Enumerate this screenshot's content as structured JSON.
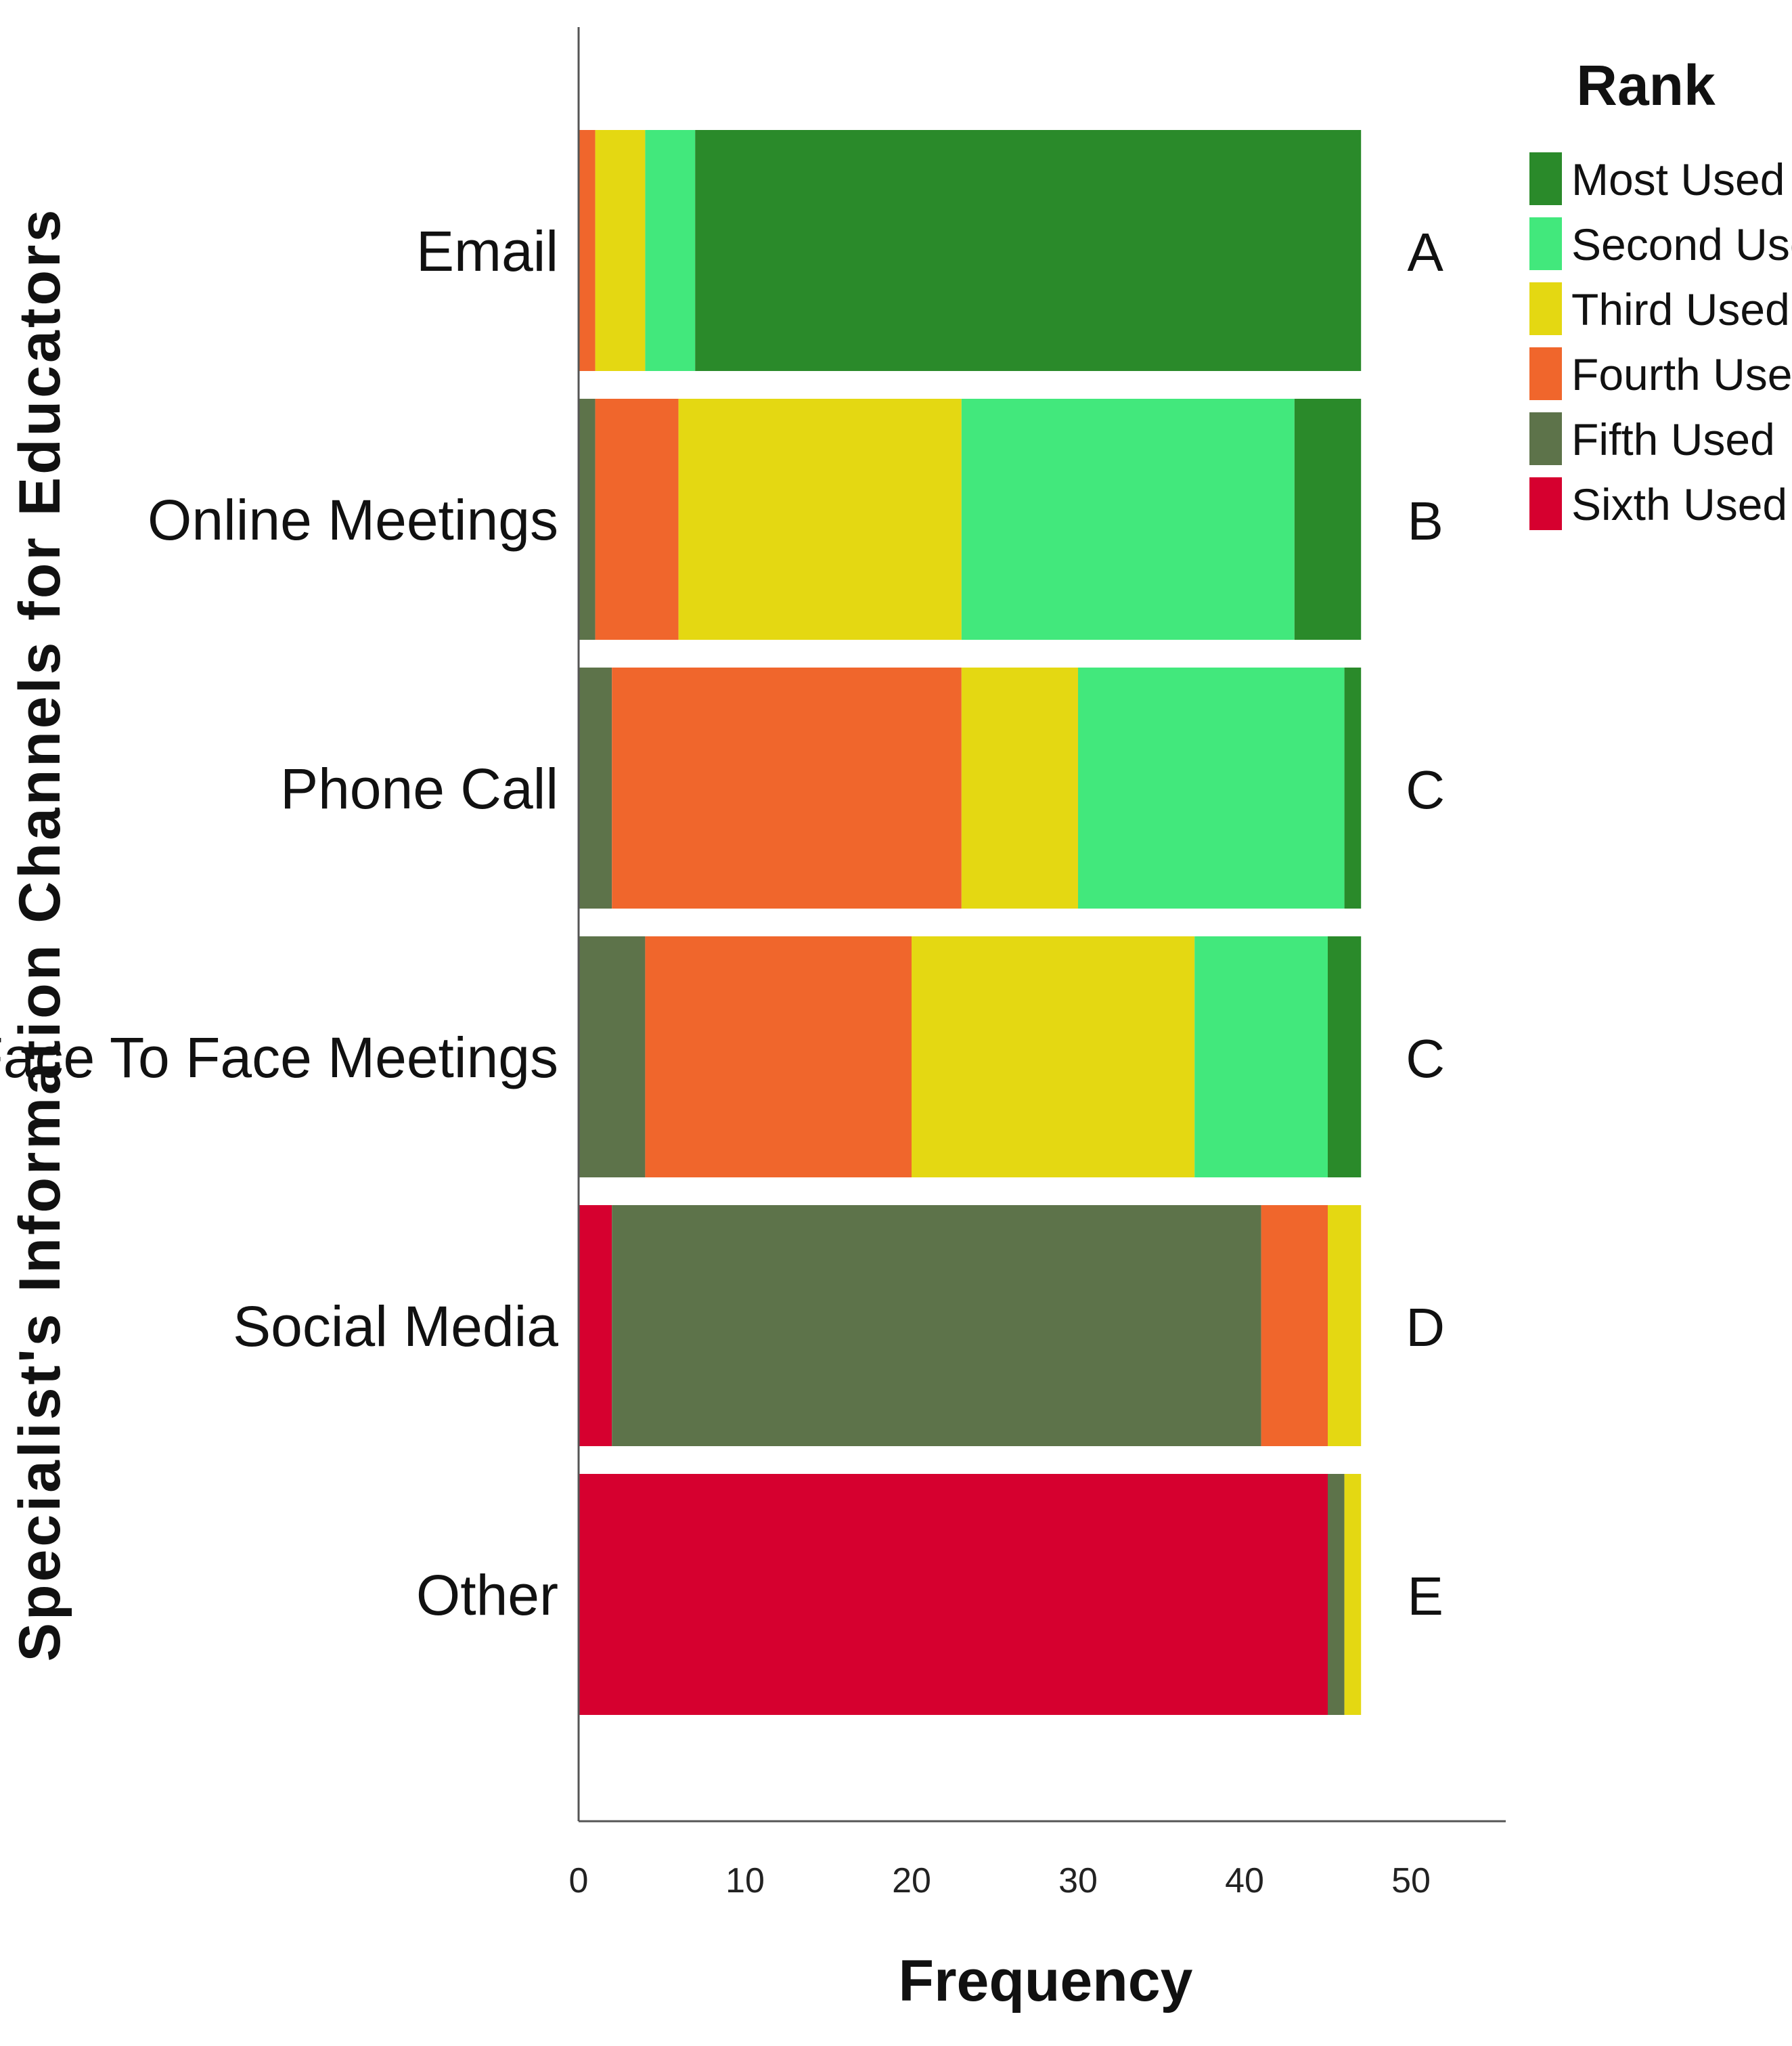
{
  "chart_data": {
    "type": "bar",
    "orientation": "horizontal",
    "stacked": true,
    "title": "",
    "xlabel": "Frequency",
    "ylabel": "Specialist's Information Channels for Educators",
    "xlim": [
      0,
      55
    ],
    "xticks": [
      0,
      10,
      20,
      30,
      40,
      50
    ],
    "grid": false,
    "legend_title": "Rank",
    "legend_position": "top-right",
    "categories": [
      "Email",
      "Online Meetings",
      "Phone Call",
      "Face To Face Meetings",
      "Social Media",
      "Other"
    ],
    "group_labels": [
      "A",
      "B",
      "C",
      "C",
      "D",
      "E"
    ],
    "stack_order": [
      "Sixth Used",
      "Fifth Used",
      "Fourth Used",
      "Third Used",
      "Second Used",
      "Most Used"
    ],
    "series": [
      {
        "name": "Most Used",
        "color": "#2a8a2a",
        "values": [
          40,
          4,
          1,
          2,
          0,
          0
        ]
      },
      {
        "name": "Second Used",
        "color": "#42e87c",
        "values": [
          3,
          20,
          16,
          8,
          0,
          0
        ]
      },
      {
        "name": "Third Used",
        "color": "#e4d812",
        "values": [
          3,
          17,
          7,
          17,
          2,
          1
        ]
      },
      {
        "name": "Fourth Used",
        "color": "#f0662c",
        "values": [
          1,
          5,
          21,
          16,
          4,
          0
        ]
      },
      {
        "name": "Fifth Used",
        "color": "#5d734a",
        "values": [
          0,
          1,
          2,
          4,
          39,
          1
        ]
      },
      {
        "name": "Sixth Used",
        "color": "#d6002f",
        "values": [
          0,
          0,
          0,
          0,
          2,
          45
        ]
      }
    ]
  }
}
